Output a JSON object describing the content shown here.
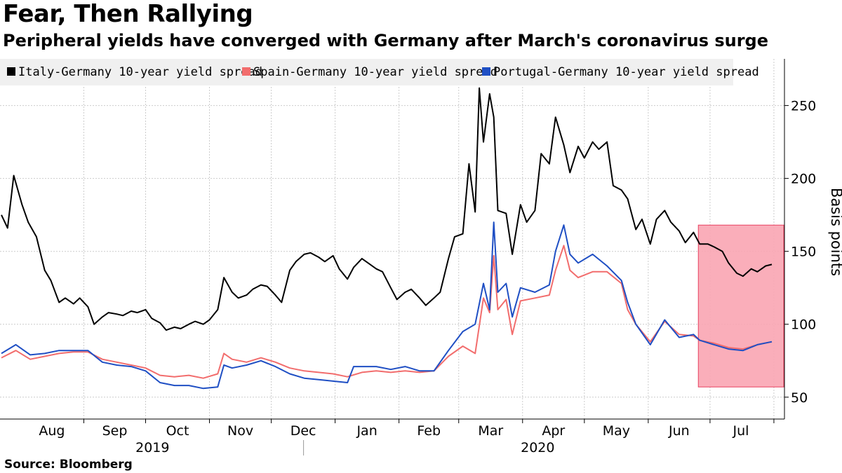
{
  "header": {
    "title": "Fear, Then Rallying",
    "subtitle": "Peripheral yields have converged with Germany after March's coronavirus surge"
  },
  "footer": {
    "source": "Source: Bloomberg"
  },
  "colors": {
    "italy": "#000000",
    "spain": "#f26d6d",
    "portugal": "#1f4fc4",
    "highlight_fill": "#f9a5b3",
    "highlight_stroke": "#e8405f",
    "grid": "#cccccc",
    "legend_bg": "#f0f0f0"
  },
  "chart_data": {
    "type": "line",
    "title": "Fear, Then Rallying",
    "subtitle": "Peripheral yields have converged with Germany after March's coronavirus surge",
    "ylabel": "Basis points",
    "ylim": [
      35,
      282
    ],
    "yticks": [
      50,
      100,
      150,
      200,
      250
    ],
    "y_axis_side": "right",
    "grid": true,
    "legend_placement": "top-left",
    "x_start": "2019-07-23",
    "x_end": "2020-07-31",
    "month_labels": [
      "Aug",
      "Sep",
      "Oct",
      "Nov",
      "Dec",
      "Jan",
      "Feb",
      "Mar",
      "Apr",
      "May",
      "Jun",
      "Jul"
    ],
    "year_labels": [
      "2019",
      "2020"
    ],
    "highlight": {
      "x_from": "2020-06-26",
      "x_to": "2020-07-31",
      "y_from": 57,
      "y_to": 168
    },
    "series": [
      {
        "name": "Italy-Germany 10-year yield spread",
        "key": "italy",
        "points": [
          [
            "2019-07-23",
            175
          ],
          [
            "2019-07-26",
            166
          ],
          [
            "2019-07-29",
            202
          ],
          [
            "2019-08-02",
            182
          ],
          [
            "2019-08-05",
            170
          ],
          [
            "2019-08-09",
            160
          ],
          [
            "2019-08-13",
            137
          ],
          [
            "2019-08-16",
            130
          ],
          [
            "2019-08-20",
            115
          ],
          [
            "2019-08-23",
            118
          ],
          [
            "2019-08-27",
            114
          ],
          [
            "2019-08-30",
            118
          ],
          [
            "2019-09-03",
            112
          ],
          [
            "2019-09-06",
            100
          ],
          [
            "2019-09-10",
            105
          ],
          [
            "2019-09-13",
            108
          ],
          [
            "2019-09-17",
            107
          ],
          [
            "2019-09-20",
            106
          ],
          [
            "2019-09-24",
            109
          ],
          [
            "2019-09-27",
            108
          ],
          [
            "2019-10-01",
            110
          ],
          [
            "2019-10-04",
            104
          ],
          [
            "2019-10-08",
            101
          ],
          [
            "2019-10-11",
            96
          ],
          [
            "2019-10-15",
            98
          ],
          [
            "2019-10-18",
            97
          ],
          [
            "2019-10-22",
            100
          ],
          [
            "2019-10-25",
            102
          ],
          [
            "2019-10-29",
            100
          ],
          [
            "2019-11-01",
            103
          ],
          [
            "2019-11-05",
            110
          ],
          [
            "2019-11-08",
            132
          ],
          [
            "2019-11-12",
            122
          ],
          [
            "2019-11-15",
            118
          ],
          [
            "2019-11-19",
            120
          ],
          [
            "2019-11-22",
            124
          ],
          [
            "2019-11-26",
            127
          ],
          [
            "2019-11-29",
            126
          ],
          [
            "2019-12-03",
            120
          ],
          [
            "2019-12-06",
            115
          ],
          [
            "2019-12-10",
            137
          ],
          [
            "2019-12-13",
            143
          ],
          [
            "2019-12-17",
            148
          ],
          [
            "2019-12-20",
            149
          ],
          [
            "2019-12-24",
            146
          ],
          [
            "2019-12-27",
            143
          ],
          [
            "2019-12-31",
            147
          ],
          [
            "2020-01-03",
            138
          ],
          [
            "2020-01-07",
            131
          ],
          [
            "2020-01-10",
            139
          ],
          [
            "2020-01-14",
            145
          ],
          [
            "2020-01-17",
            142
          ],
          [
            "2020-01-21",
            138
          ],
          [
            "2020-01-24",
            136
          ],
          [
            "2020-01-28",
            125
          ],
          [
            "2020-01-31",
            117
          ],
          [
            "2020-02-04",
            122
          ],
          [
            "2020-02-07",
            124
          ],
          [
            "2020-02-11",
            118
          ],
          [
            "2020-02-14",
            113
          ],
          [
            "2020-02-18",
            118
          ],
          [
            "2020-02-21",
            122
          ],
          [
            "2020-02-25",
            145
          ],
          [
            "2020-02-28",
            160
          ],
          [
            "2020-03-03",
            162
          ],
          [
            "2020-03-06",
            210
          ],
          [
            "2020-03-09",
            177
          ],
          [
            "2020-03-11",
            262
          ],
          [
            "2020-03-13",
            225
          ],
          [
            "2020-03-16",
            258
          ],
          [
            "2020-03-18",
            242
          ],
          [
            "2020-03-20",
            178
          ],
          [
            "2020-03-24",
            176
          ],
          [
            "2020-03-27",
            148
          ],
          [
            "2020-03-31",
            182
          ],
          [
            "2020-04-03",
            170
          ],
          [
            "2020-04-07",
            178
          ],
          [
            "2020-04-10",
            217
          ],
          [
            "2020-04-14",
            210
          ],
          [
            "2020-04-17",
            242
          ],
          [
            "2020-04-21",
            223
          ],
          [
            "2020-04-24",
            204
          ],
          [
            "2020-04-28",
            222
          ],
          [
            "2020-05-01",
            214
          ],
          [
            "2020-05-05",
            225
          ],
          [
            "2020-05-08",
            220
          ],
          [
            "2020-05-12",
            225
          ],
          [
            "2020-05-15",
            195
          ],
          [
            "2020-05-19",
            192
          ],
          [
            "2020-05-22",
            186
          ],
          [
            "2020-05-26",
            165
          ],
          [
            "2020-05-29",
            172
          ],
          [
            "2020-06-02",
            155
          ],
          [
            "2020-06-05",
            172
          ],
          [
            "2020-06-09",
            178
          ],
          [
            "2020-06-12",
            170
          ],
          [
            "2020-06-16",
            164
          ],
          [
            "2020-06-19",
            156
          ],
          [
            "2020-06-23",
            163
          ],
          [
            "2020-06-26",
            155
          ],
          [
            "2020-06-30",
            155
          ],
          [
            "2020-07-03",
            153
          ],
          [
            "2020-07-07",
            150
          ],
          [
            "2020-07-10",
            142
          ],
          [
            "2020-07-14",
            135
          ],
          [
            "2020-07-17",
            133
          ],
          [
            "2020-07-21",
            138
          ],
          [
            "2020-07-24",
            136
          ],
          [
            "2020-07-28",
            140
          ],
          [
            "2020-07-31",
            141
          ]
        ]
      },
      {
        "name": "Spain-Germany 10-year yield spread",
        "key": "spain",
        "points": [
          [
            "2019-07-23",
            77
          ],
          [
            "2019-07-30",
            82
          ],
          [
            "2019-08-06",
            76
          ],
          [
            "2019-08-13",
            78
          ],
          [
            "2019-08-20",
            80
          ],
          [
            "2019-08-27",
            81
          ],
          [
            "2019-09-03",
            81
          ],
          [
            "2019-09-10",
            76
          ],
          [
            "2019-09-17",
            74
          ],
          [
            "2019-09-24",
            72
          ],
          [
            "2019-10-01",
            70
          ],
          [
            "2019-10-08",
            65
          ],
          [
            "2019-10-15",
            64
          ],
          [
            "2019-10-22",
            65
          ],
          [
            "2019-10-29",
            63
          ],
          [
            "2019-11-05",
            66
          ],
          [
            "2019-11-08",
            80
          ],
          [
            "2019-11-12",
            76
          ],
          [
            "2019-11-19",
            74
          ],
          [
            "2019-11-26",
            77
          ],
          [
            "2019-12-03",
            74
          ],
          [
            "2019-12-10",
            70
          ],
          [
            "2019-12-17",
            68
          ],
          [
            "2019-12-24",
            67
          ],
          [
            "2019-12-31",
            66
          ],
          [
            "2020-01-07",
            64
          ],
          [
            "2020-01-14",
            67
          ],
          [
            "2020-01-21",
            68
          ],
          [
            "2020-01-28",
            67
          ],
          [
            "2020-02-04",
            68
          ],
          [
            "2020-02-11",
            67
          ],
          [
            "2020-02-18",
            68
          ],
          [
            "2020-02-25",
            78
          ],
          [
            "2020-03-03",
            85
          ],
          [
            "2020-03-09",
            80
          ],
          [
            "2020-03-13",
            118
          ],
          [
            "2020-03-16",
            108
          ],
          [
            "2020-03-18",
            147
          ],
          [
            "2020-03-20",
            110
          ],
          [
            "2020-03-24",
            117
          ],
          [
            "2020-03-27",
            93
          ],
          [
            "2020-03-31",
            116
          ],
          [
            "2020-04-07",
            118
          ],
          [
            "2020-04-14",
            120
          ],
          [
            "2020-04-17",
            137
          ],
          [
            "2020-04-21",
            154
          ],
          [
            "2020-04-24",
            137
          ],
          [
            "2020-04-28",
            132
          ],
          [
            "2020-05-05",
            136
          ],
          [
            "2020-05-12",
            136
          ],
          [
            "2020-05-19",
            128
          ],
          [
            "2020-05-22",
            110
          ],
          [
            "2020-05-26",
            100
          ],
          [
            "2020-06-02",
            88
          ],
          [
            "2020-06-09",
            102
          ],
          [
            "2020-06-16",
            93
          ],
          [
            "2020-06-23",
            92
          ],
          [
            "2020-06-26",
            89
          ],
          [
            "2020-07-03",
            87
          ],
          [
            "2020-07-10",
            84
          ],
          [
            "2020-07-17",
            83
          ],
          [
            "2020-07-24",
            86
          ],
          [
            "2020-07-31",
            88
          ]
        ]
      },
      {
        "name": "Portugal-Germany 10-year yield spread",
        "key": "portugal",
        "points": [
          [
            "2019-07-23",
            80
          ],
          [
            "2019-07-30",
            86
          ],
          [
            "2019-08-06",
            79
          ],
          [
            "2019-08-13",
            80
          ],
          [
            "2019-08-20",
            82
          ],
          [
            "2019-08-27",
            82
          ],
          [
            "2019-09-03",
            82
          ],
          [
            "2019-09-10",
            74
          ],
          [
            "2019-09-17",
            72
          ],
          [
            "2019-09-24",
            71
          ],
          [
            "2019-10-01",
            68
          ],
          [
            "2019-10-08",
            60
          ],
          [
            "2019-10-15",
            58
          ],
          [
            "2019-10-22",
            58
          ],
          [
            "2019-10-29",
            56
          ],
          [
            "2019-11-05",
            57
          ],
          [
            "2019-11-08",
            72
          ],
          [
            "2019-11-12",
            70
          ],
          [
            "2019-11-19",
            72
          ],
          [
            "2019-11-26",
            75
          ],
          [
            "2019-12-03",
            71
          ],
          [
            "2019-12-10",
            66
          ],
          [
            "2019-12-17",
            63
          ],
          [
            "2019-12-24",
            62
          ],
          [
            "2019-12-31",
            61
          ],
          [
            "2020-01-07",
            60
          ],
          [
            "2020-01-10",
            71
          ],
          [
            "2020-01-21",
            71
          ],
          [
            "2020-01-28",
            69
          ],
          [
            "2020-02-04",
            71
          ],
          [
            "2020-02-11",
            68
          ],
          [
            "2020-02-18",
            68
          ],
          [
            "2020-02-25",
            82
          ],
          [
            "2020-03-03",
            95
          ],
          [
            "2020-03-09",
            100
          ],
          [
            "2020-03-13",
            128
          ],
          [
            "2020-03-16",
            110
          ],
          [
            "2020-03-18",
            170
          ],
          [
            "2020-03-20",
            122
          ],
          [
            "2020-03-24",
            128
          ],
          [
            "2020-03-27",
            105
          ],
          [
            "2020-03-31",
            125
          ],
          [
            "2020-04-07",
            122
          ],
          [
            "2020-04-14",
            127
          ],
          [
            "2020-04-17",
            150
          ],
          [
            "2020-04-21",
            168
          ],
          [
            "2020-04-24",
            148
          ],
          [
            "2020-04-28",
            142
          ],
          [
            "2020-05-05",
            148
          ],
          [
            "2020-05-12",
            140
          ],
          [
            "2020-05-19",
            130
          ],
          [
            "2020-05-22",
            115
          ],
          [
            "2020-05-26",
            100
          ],
          [
            "2020-06-02",
            86
          ],
          [
            "2020-06-09",
            103
          ],
          [
            "2020-06-16",
            91
          ],
          [
            "2020-06-23",
            93
          ],
          [
            "2020-06-26",
            89
          ],
          [
            "2020-07-03",
            86
          ],
          [
            "2020-07-10",
            83
          ],
          [
            "2020-07-17",
            82
          ],
          [
            "2020-07-24",
            86
          ],
          [
            "2020-07-31",
            88
          ]
        ]
      }
    ]
  }
}
